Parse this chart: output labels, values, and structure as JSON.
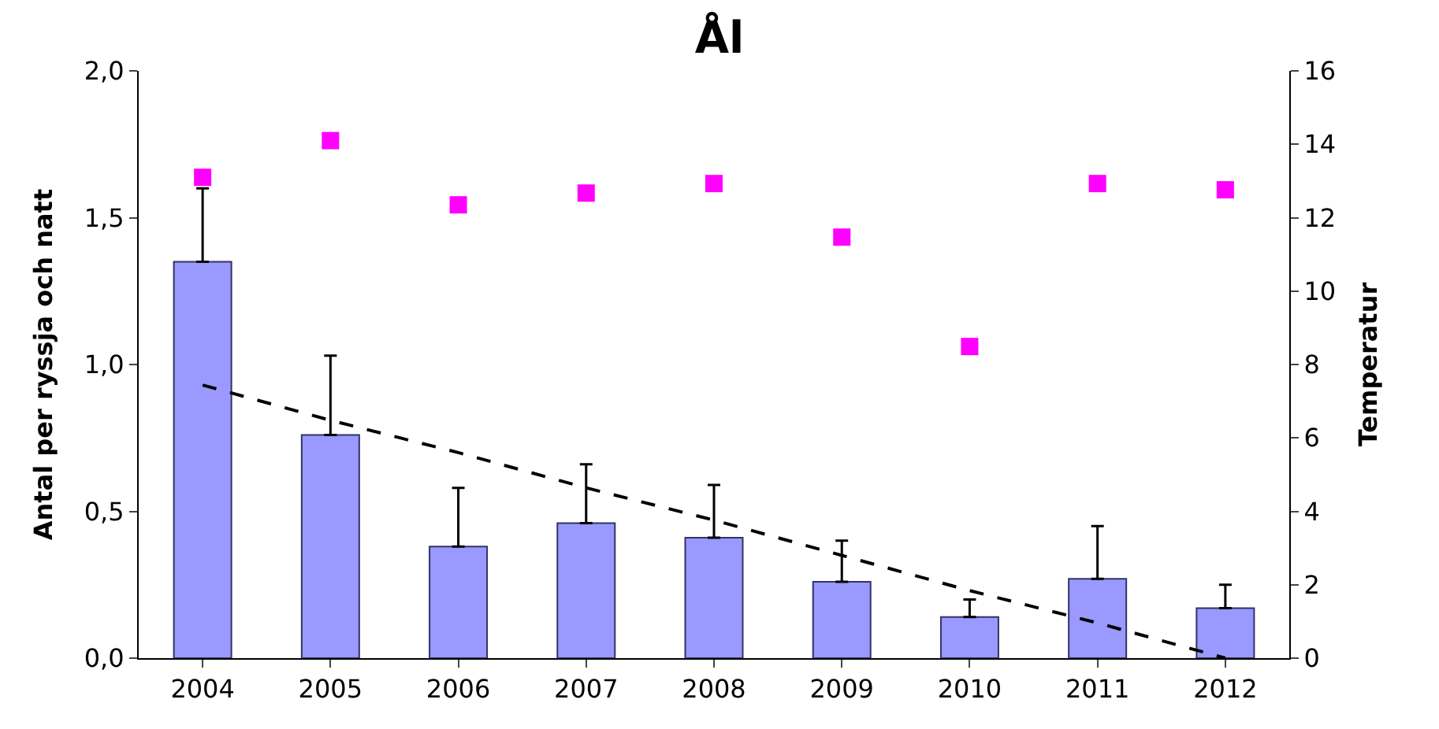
{
  "chart_data": {
    "type": "bar",
    "title": "Ål",
    "ylabel": "Antal per ryssja och natt",
    "y2label": "Temperatur",
    "categories": [
      "2004",
      "2005",
      "2006",
      "2007",
      "2008",
      "2009",
      "2010",
      "2011",
      "2012"
    ],
    "series": [
      {
        "color": "#9999ff",
        "values": [
          1.35,
          0.76,
          0.38,
          0.46,
          0.41,
          0.26,
          0.14,
          0.27,
          0.17
        ],
        "errors": [
          [
            1.35,
            1.6
          ],
          [
            0.76,
            1.03
          ],
          [
            0.38,
            0.58
          ],
          [
            0.46,
            0.66
          ],
          [
            0.41,
            0.59
          ],
          [
            0.26,
            0.4
          ],
          [
            0.14,
            0.2
          ],
          [
            0.27,
            0.45
          ],
          [
            0.17,
            0.25
          ]
        ]
      },
      {
        "type": "scatter",
        "color": "#ff00ff",
        "axis": "y2",
        "marker": "square",
        "values": [
          13.1,
          14.1,
          12.35,
          12.67,
          12.93,
          11.47,
          8.49,
          12.93,
          12.76
        ]
      },
      {
        "type": "line",
        "color": "#000000",
        "line_style": "dashed",
        "values": [
          0.93,
          0.81,
          0.7,
          0.58,
          0.47,
          0.35,
          0.23,
          0.12,
          0.0
        ]
      }
    ],
    "ylim": [
      0,
      2
    ],
    "yticks": [
      {
        "value": 0,
        "label": "0,0"
      },
      {
        "value": 0.5,
        "label": "0,5"
      },
      {
        "value": 1,
        "label": "1,0"
      },
      {
        "value": 1.5,
        "label": "1,5"
      },
      {
        "value": 2,
        "label": "2,0"
      }
    ],
    "y2lim": [
      0,
      16
    ],
    "y2ticks": [
      0,
      2,
      4,
      6,
      8,
      10,
      12,
      14,
      16
    ]
  }
}
